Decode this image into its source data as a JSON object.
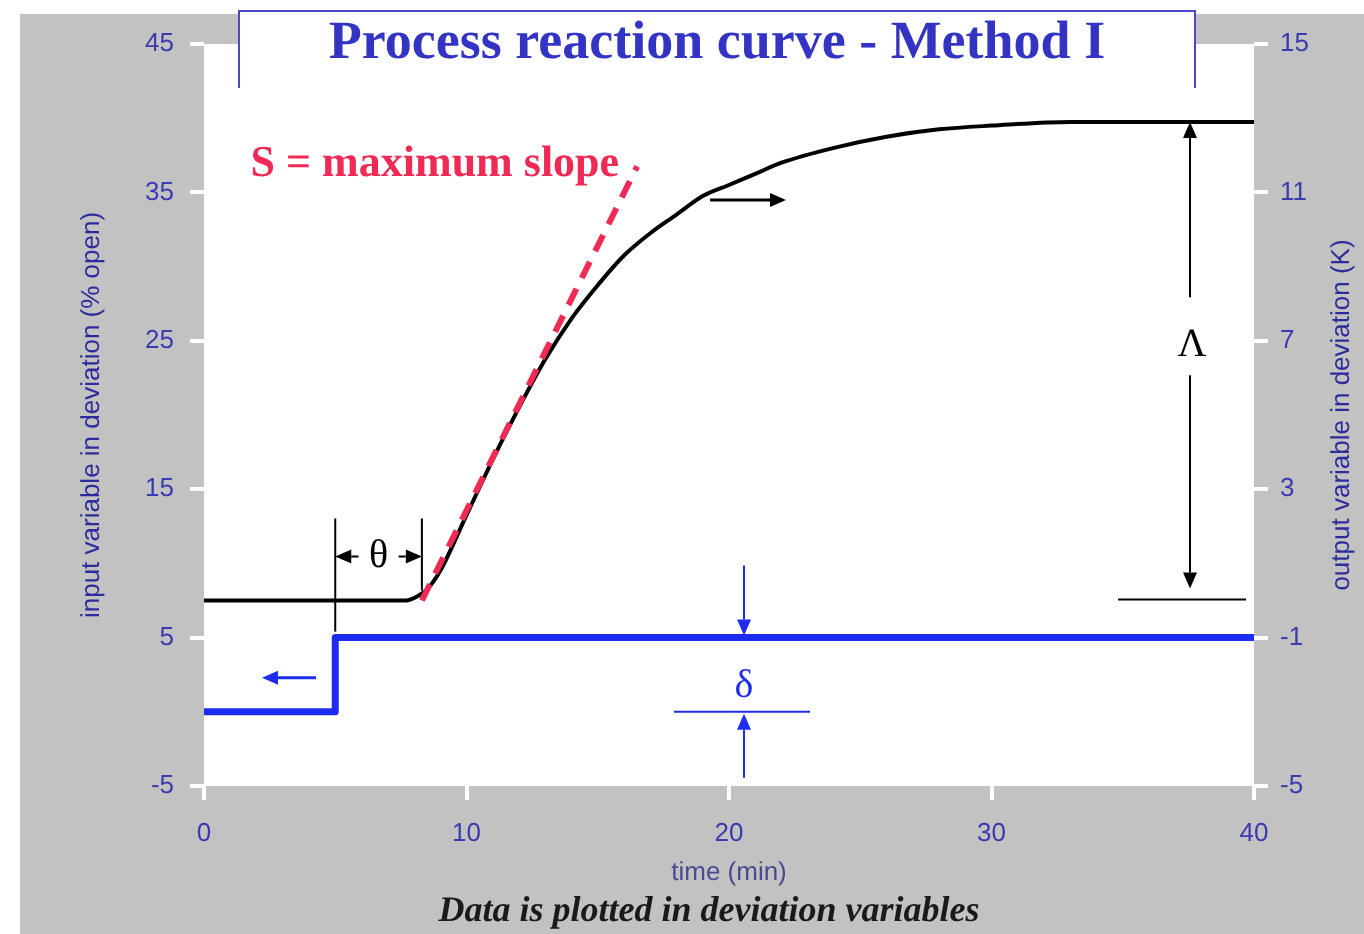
{
  "chart_data": {
    "type": "line",
    "title": "Process reaction curve - Method I",
    "xlabel": "time (min)",
    "ylabel": "input variable in deviation (% open)",
    "y2label": "output variable in deviation (K)",
    "xlim": [
      0,
      40
    ],
    "xticks": [
      0,
      10,
      20,
      30,
      40
    ],
    "ylim": [
      -5,
      45
    ],
    "yticks": [
      -5,
      5,
      15,
      25,
      35,
      45
    ],
    "y2lim": [
      -5,
      15
    ],
    "y2ticks": [
      -5,
      -1,
      3,
      7,
      11,
      15
    ],
    "series": [
      {
        "type": "step",
        "color": "#1e2cf0",
        "x": [
          0,
          5,
          40
        ],
        "values": [
          0,
          5,
          5
        ]
      },
      {
        "type": "line",
        "axis": "y2",
        "color": "#000000",
        "x": [
          0,
          7.7,
          8.1,
          8.5,
          9,
          10,
          11,
          12,
          13,
          14,
          15,
          16,
          17,
          18,
          19,
          20,
          21,
          22,
          24,
          26,
          28,
          30,
          33,
          36,
          40
        ],
        "values": [
          0,
          0,
          0.1,
          0.3,
          0.8,
          2.3,
          3.8,
          5.2,
          6.5,
          7.6,
          8.5,
          9.3,
          9.9,
          10.4,
          10.9,
          11.2,
          11.5,
          11.8,
          12.2,
          12.5,
          12.7,
          12.8,
          12.9,
          12.9,
          12.9
        ]
      },
      {
        "type": "line",
        "axis": "y2",
        "name": "S = maximum slope",
        "color": "#ee2a55",
        "line_style": "dashed",
        "x": [
          8.3,
          16.5
        ],
        "values": [
          0,
          11.7
        ]
      }
    ],
    "annotations": [
      {
        "text": "θ",
        "x": 5,
        "y": 5
      },
      "Λ",
      "δ",
      "Data is plotted in deviation variables"
    ]
  }
}
